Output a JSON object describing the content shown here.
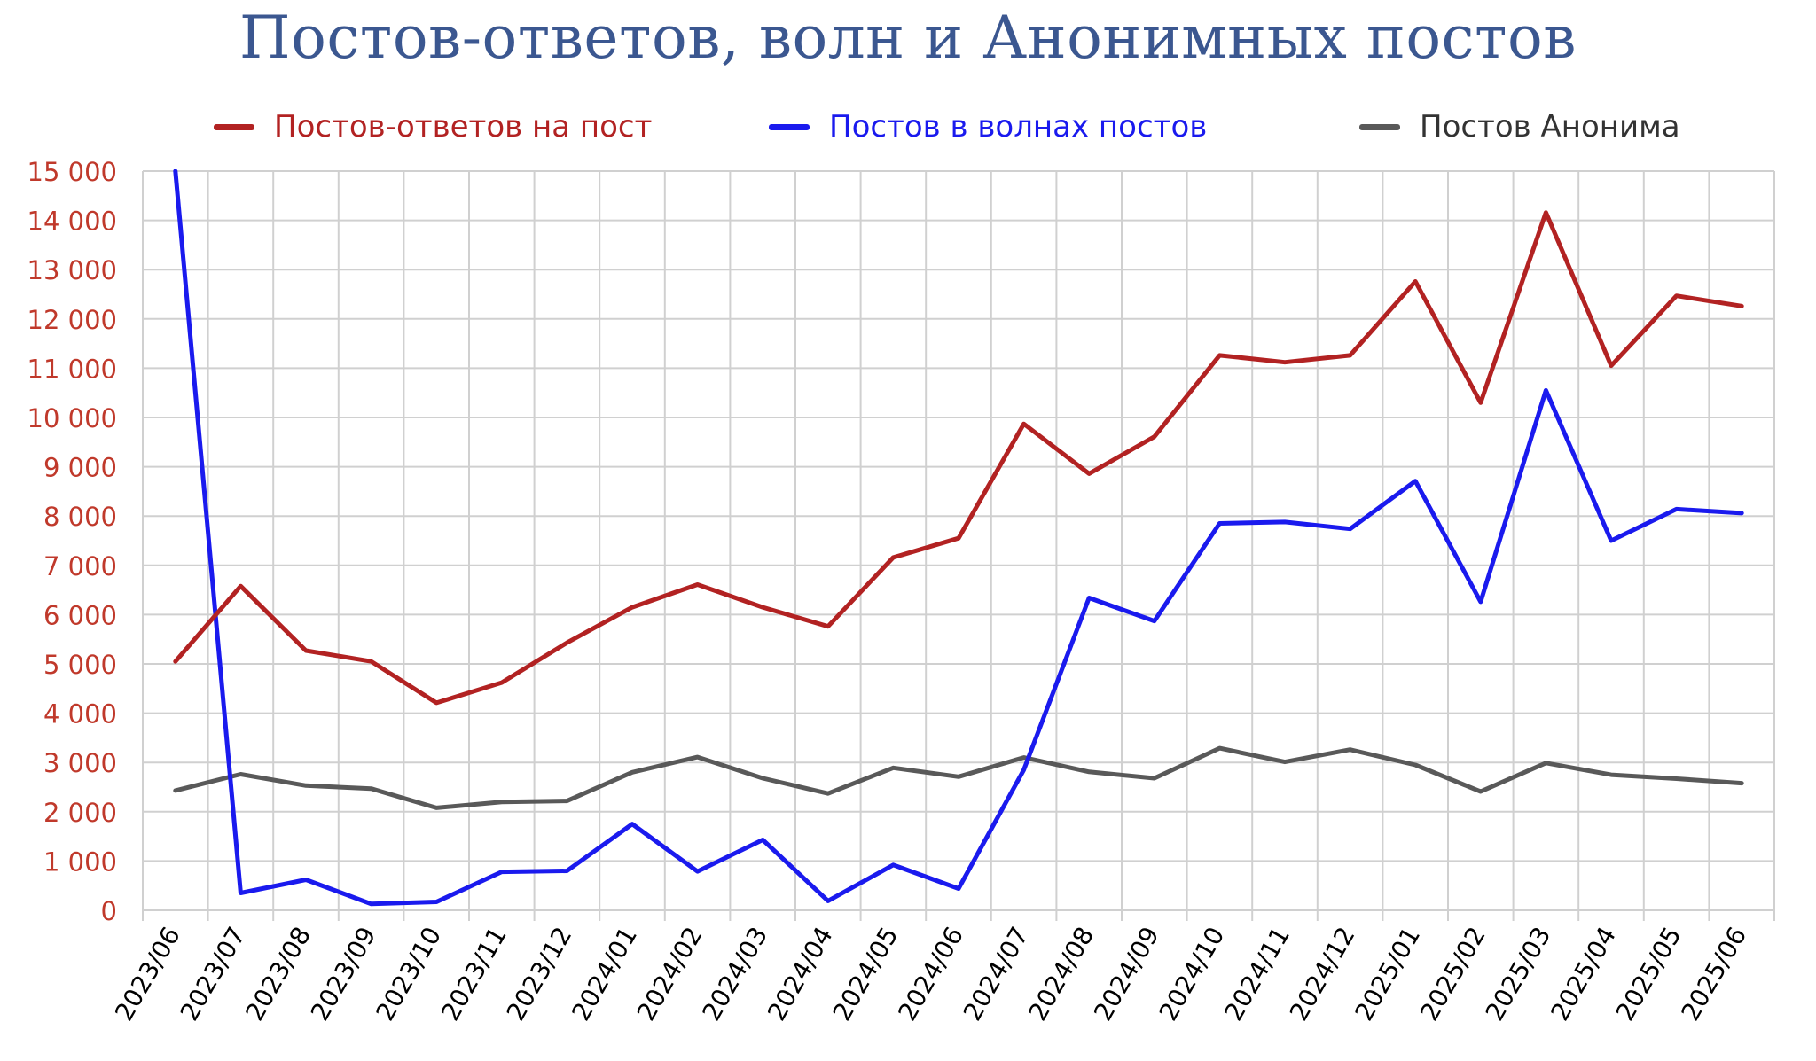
{
  "chart_data": {
    "type": "line",
    "title": "Постов-ответов, волн и Анонимных постов",
    "xlabel": "",
    "ylabel": "",
    "ylim": [
      0,
      15000
    ],
    "yticks": [
      0,
      1000,
      2000,
      3000,
      4000,
      5000,
      6000,
      7000,
      8000,
      9000,
      10000,
      11000,
      12000,
      13000,
      14000,
      15000
    ],
    "ytick_labels": [
      "0",
      "1 000",
      "2 000",
      "3 000",
      "4 000",
      "5 000",
      "6 000",
      "7 000",
      "8 000",
      "9 000",
      "10 000",
      "11 000",
      "12 000",
      "13 000",
      "14 000",
      "15 000"
    ],
    "grid": true,
    "legend_position": "top",
    "categories": [
      "2023/06",
      "2023/07",
      "2023/08",
      "2023/09",
      "2023/10",
      "2023/11",
      "2023/12",
      "2024/01",
      "2024/02",
      "2024/03",
      "2024/04",
      "2024/05",
      "2024/06",
      "2024/07",
      "2024/08",
      "2024/09",
      "2024/10",
      "2024/11",
      "2024/12",
      "2025/01",
      "2025/02",
      "2025/03",
      "2025/04",
      "2025/05",
      "2025/06"
    ],
    "series": [
      {
        "name": "Постов-ответов на пост",
        "color": "#b22222",
        "values": [
          5050,
          6580,
          5270,
          5050,
          4210,
          4620,
          5430,
          6150,
          6610,
          6150,
          5760,
          7160,
          7550,
          9870,
          8860,
          9610,
          11260,
          11120,
          11260,
          12760,
          10300,
          14160,
          11050,
          12470,
          12260
        ]
      },
      {
        "name": "Постов в волнах постов",
        "color": "#1a1aee",
        "values": [
          15000,
          350,
          620,
          130,
          170,
          780,
          800,
          1750,
          790,
          1430,
          190,
          920,
          440,
          2850,
          6340,
          5870,
          7850,
          7880,
          7740,
          8710,
          6260,
          10550,
          7500,
          8140,
          8060
        ]
      },
      {
        "name": "Постов Анонима",
        "color": "#595959",
        "values": [
          2430,
          2760,
          2530,
          2470,
          2080,
          2200,
          2220,
          2800,
          3110,
          2680,
          2370,
          2890,
          2710,
          3100,
          2810,
          2680,
          3290,
          3010,
          3260,
          2950,
          2410,
          2990,
          2750,
          2670,
          2580
        ]
      }
    ]
  }
}
